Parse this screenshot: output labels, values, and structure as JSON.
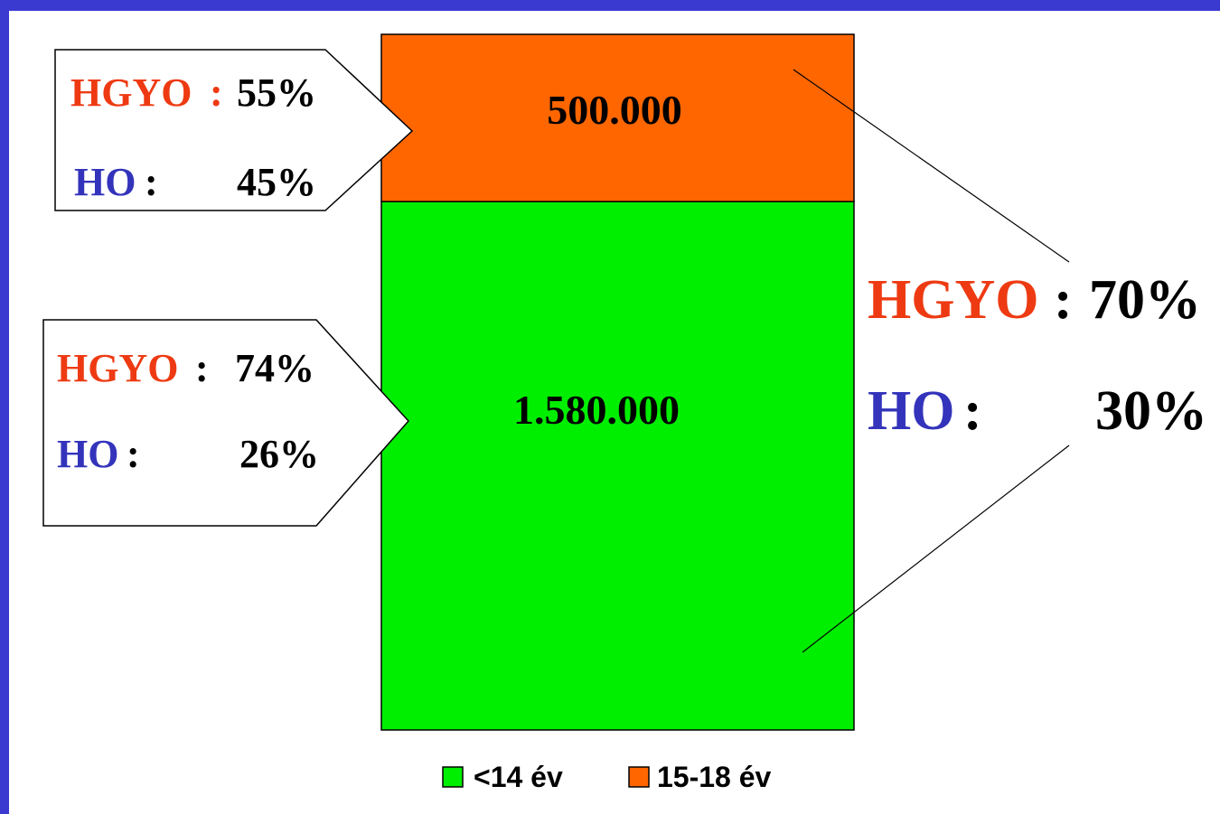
{
  "colors": {
    "border": "#3a3ad0",
    "hgyo": "#ee3a12",
    "ho": "#3333bb",
    "under14": "#00ee00",
    "age15_18": "#ff6600"
  },
  "chart_data": {
    "type": "bar",
    "stacked": true,
    "categories": [
      ""
    ],
    "series": [
      {
        "name": "<14 év",
        "values": [
          1580000
        ],
        "value_label": "1.580.000"
      },
      {
        "name": "15-18 év",
        "values": [
          500000
        ],
        "value_label": "500.000"
      }
    ],
    "ylim": [
      0,
      2080000
    ],
    "legend_position": "bottom",
    "annotations": {
      "age15_18": {
        "hgyo_label": "HGYO",
        "hgyo_value": "55%",
        "ho_label": "HO",
        "ho_value": "45%"
      },
      "under14": {
        "hgyo_label": "HGYO",
        "hgyo_value": "74%",
        "ho_label": "HO",
        "ho_value": "26%"
      },
      "total": {
        "hgyo_label": "HGYO",
        "hgyo_value": "70%",
        "ho_label": "HO",
        "ho_value": "30%"
      }
    }
  }
}
